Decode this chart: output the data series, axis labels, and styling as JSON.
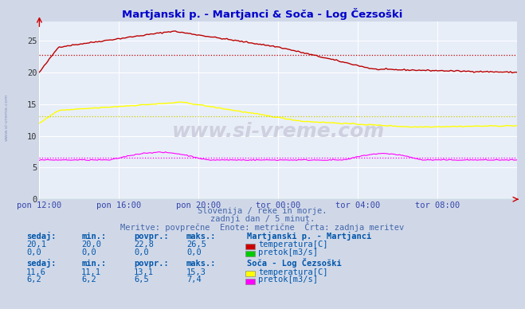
{
  "title": "Martjanski p. - Martjanci & Soča - Log Čezsoški",
  "title_color": "#0000cc",
  "bg_color": "#d0d8e8",
  "plot_bg_color": "#e8eef8",
  "grid_color": "#ffffff",
  "ylim": [
    0,
    28
  ],
  "yticks": [
    0,
    5,
    10,
    15,
    20,
    25
  ],
  "xlabel_color": "#3344aa",
  "watermark": "www.si-vreme.com",
  "watermark_left": "www.si-vreme.com",
  "subtitle1": "Slovenija / reke in morje.",
  "subtitle2": "zadnji dan / 5 minut.",
  "subtitle3": "Meritve: povprečne  Enote: metrične  Črta: zadnja meritev",
  "legend": {
    "station1": "Martjanski p. - Martjanci",
    "temp1_color": "#cc0000",
    "flow1_color": "#00cc00",
    "temp1_label": "temperatura[C]",
    "flow1_label": "pretok[m3/s]",
    "station2": "Soča - Log Čezsoški",
    "temp2_color": "#ffff00",
    "flow2_color": "#ff00ff",
    "temp2_label": "temperatura[C]",
    "flow2_label": "pretok[m3/s]"
  },
  "stats": {
    "station1": {
      "temp": {
        "sedaj": 20.1,
        "min": 20.0,
        "povpr": 22.8,
        "maks": 26.5
      },
      "flow": {
        "sedaj": 0.0,
        "min": 0.0,
        "povpr": 0.0,
        "maks": 0.0
      }
    },
    "station2": {
      "temp": {
        "sedaj": 11.6,
        "min": 11.1,
        "povpr": 13.1,
        "maks": 15.3
      },
      "flow": {
        "sedaj": 6.2,
        "min": 6.2,
        "povpr": 6.5,
        "maks": 7.4
      }
    }
  },
  "xtick_labels": [
    "pon 12:00",
    "pon 16:00",
    "pon 20:00",
    "tor 00:00",
    "tor 04:00",
    "tor 08:00"
  ],
  "xtick_positions": [
    0,
    48,
    96,
    144,
    192,
    240
  ],
  "n_points": 289,
  "temp1_avg": 22.8,
  "temp2_avg": 13.1,
  "flow2_avg": 6.5
}
